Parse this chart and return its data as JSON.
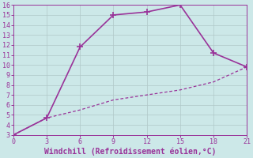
{
  "line1_x": [
    0,
    3,
    6,
    9,
    12,
    15,
    18,
    21
  ],
  "line1_y": [
    3,
    4.7,
    11.8,
    15,
    15.3,
    16,
    11.2,
    9.8
  ],
  "line2_x": [
    0,
    3,
    6,
    9,
    12,
    15,
    18,
    21
  ],
  "line2_y": [
    3,
    4.7,
    5.5,
    6.5,
    7.0,
    7.5,
    8.3,
    9.8
  ],
  "line_color": "#993399",
  "bg_color": "#cce8e8",
  "plot_bg_color": "#cce8e8",
  "xlabel": "Windchill (Refroidissement éolien,°C)",
  "xlim": [
    0,
    21
  ],
  "ylim": [
    3,
    16
  ],
  "xticks": [
    0,
    3,
    6,
    9,
    12,
    15,
    18,
    21
  ],
  "yticks": [
    3,
    4,
    5,
    6,
    7,
    8,
    9,
    10,
    11,
    12,
    13,
    14,
    15,
    16
  ],
  "grid_color": "#b0c8c8",
  "marker1": "+",
  "marker2": "None",
  "markersize1": 6,
  "markersize2": 0,
  "linewidth1": 1.2,
  "linewidth2": 0.9,
  "linestyle2": "--",
  "xlabel_fontsize": 7,
  "tick_fontsize": 6,
  "tick_color": "#993399",
  "label_color": "#993399",
  "spine_color": "#993399"
}
